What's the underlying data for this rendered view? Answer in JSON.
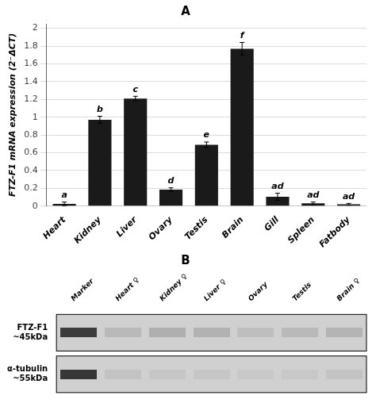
{
  "chart_data": [
    {
      "type": "bar",
      "title": "A",
      "categories": [
        "Heart",
        "Kidney",
        "Liver",
        "Ovary",
        "Testis",
        "Brain",
        "Gill",
        "Spleen",
        "Fatbody"
      ],
      "values": [
        0.025,
        0.97,
        1.21,
        0.185,
        0.69,
        1.77,
        0.105,
        0.03,
        0.02
      ],
      "errors": [
        0.02,
        0.04,
        0.025,
        0.02,
        0.03,
        0.07,
        0.04,
        0.015,
        0.01
      ],
      "annotations": [
        "a",
        "b",
        "c",
        "d",
        "e",
        "f",
        "ad",
        "ad",
        "ad"
      ],
      "color": "#1a1a1a",
      "ylabel": "FTZ-F1 mRNA expression (2⁻ΔCT)",
      "ylim": [
        0,
        2.05
      ],
      "yticks": [
        0,
        0.2,
        0.4,
        0.6,
        0.8,
        1,
        1.2,
        1.4,
        1.6,
        1.8,
        2
      ],
      "grid": true
    },
    {
      "type": "heatmap",
      "title": "B",
      "categories": [
        "Marker",
        "Heart ♀",
        "Kidney ♀",
        "Liver ♀",
        "Ovary",
        "Testis",
        "Brain ♀"
      ],
      "row_labels": [
        [
          "FTZ-F1",
          "~45kDa"
        ],
        [
          "α-tubulin",
          "~55kDa"
        ]
      ],
      "cells": [
        [
          60,
          185,
          175,
          178,
          190,
          185,
          180
        ],
        [
          55,
          195,
          198,
          198,
          200,
          200,
          195
        ]
      ],
      "color": "#d0d0d0",
      "grid": false
    }
  ]
}
